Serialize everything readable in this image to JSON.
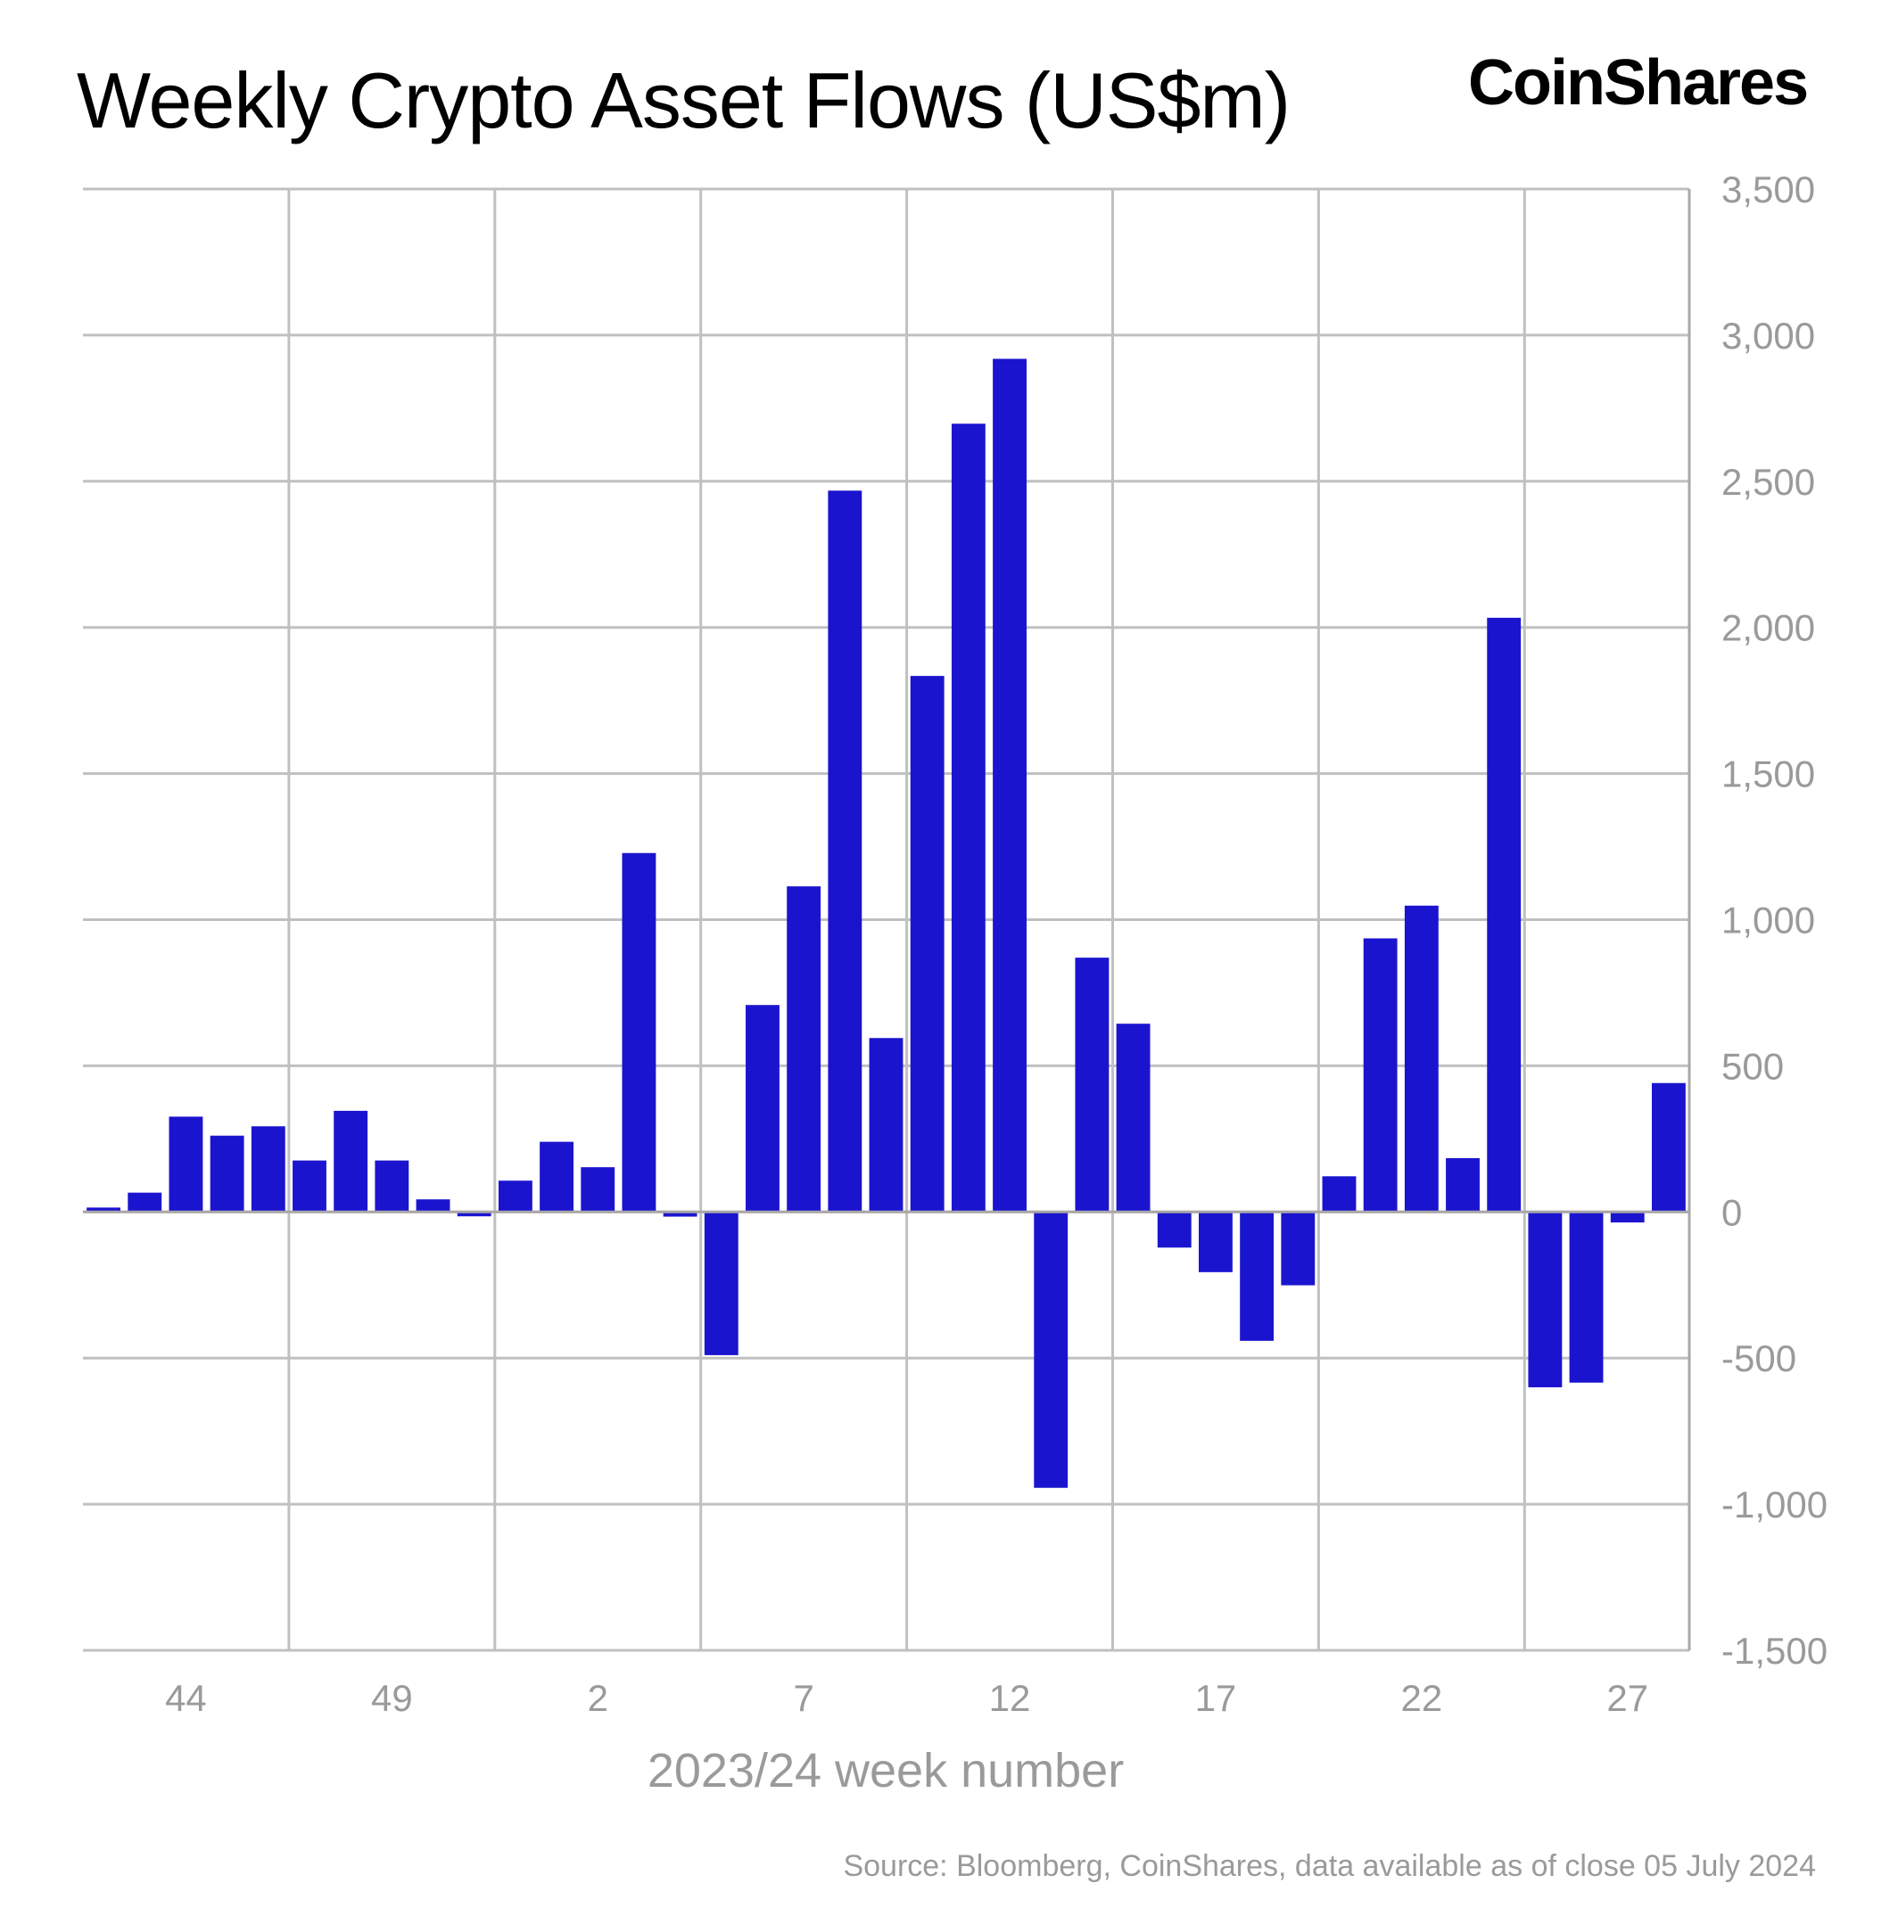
{
  "title": "Weekly Crypto Asset Flows (US$m)",
  "brand": "CoinShares",
  "source": "Source: Bloomberg, CoinShares, data available as of close 05 July 2024",
  "colors": {
    "bar": "#1b14cf",
    "grid": "#c0c0c0",
    "tick": "#9a9a9a"
  },
  "chart_data": {
    "type": "bar",
    "xlabel": "2023/24 week number",
    "ylabel": "",
    "ylim": [
      -1500,
      3500
    ],
    "yticks": [
      3500,
      3000,
      2500,
      2000,
      1500,
      1000,
      500,
      0,
      -500,
      -1000,
      -1500
    ],
    "ytick_labels": [
      "3,500",
      "3,000",
      "2,500",
      "2,000",
      "1,500",
      "1,000",
      "500",
      "0",
      "-500",
      "-1,000",
      "-1,500"
    ],
    "xtick_labels": [
      "44",
      "49",
      "2",
      "7",
      "12",
      "17",
      "22",
      "27"
    ],
    "categories": [
      "42",
      "43",
      "44",
      "45",
      "46",
      "47",
      "48",
      "49",
      "50",
      "51",
      "52",
      "1",
      "2",
      "3",
      "4",
      "5",
      "6",
      "7",
      "8",
      "9",
      "10",
      "11",
      "12",
      "13",
      "14",
      "15",
      "16",
      "17",
      "18",
      "19",
      "20",
      "21",
      "22",
      "23",
      "24",
      "25",
      "26",
      "27",
      "28"
    ],
    "values": [
      15,
      66,
      326,
      261,
      293,
      176,
      346,
      176,
      43,
      -15,
      107,
      240,
      153,
      1228,
      -16,
      -490,
      708,
      1114,
      2468,
      595,
      1834,
      2697,
      2919,
      -944,
      870,
      644,
      -122,
      -206,
      -441,
      -251,
      122,
      936,
      1048,
      184,
      2033,
      -600,
      -584,
      -36,
      441
    ],
    "grid": true,
    "legend": "none"
  }
}
